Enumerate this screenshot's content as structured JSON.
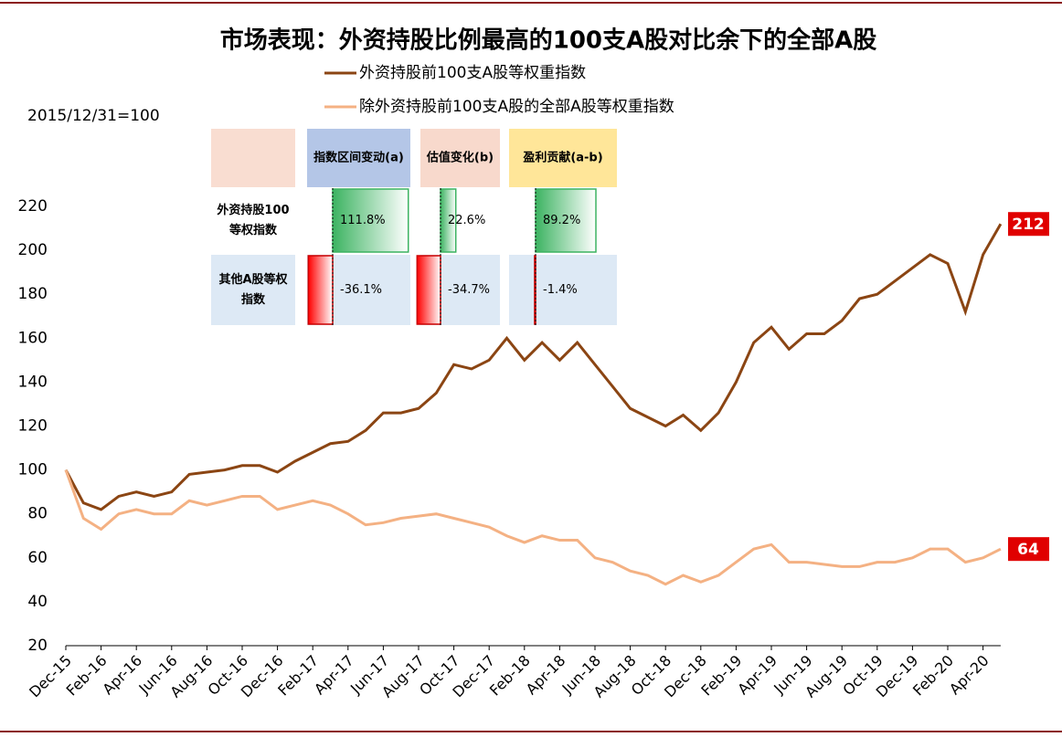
{
  "chart_data": {
    "type": "line",
    "title": "市场表现：外资持股比例最高的100支A股对比余下的全部A股",
    "subtitle": "2015/12/31=100",
    "categories": [
      "Dec-15",
      null,
      "Feb-16",
      null,
      "Apr-16",
      null,
      "Jun-16",
      null,
      "Aug-16",
      null,
      "Oct-16",
      null,
      "Dec-16",
      null,
      "Feb-17",
      null,
      "Apr-17",
      null,
      "Jun-17",
      null,
      "Aug-17",
      null,
      "Oct-17",
      null,
      "Dec-17",
      null,
      "Feb-18",
      null,
      "Apr-18",
      null,
      "Jun-18",
      null,
      "Aug-18",
      null,
      "Oct-18",
      null,
      "Dec-18",
      null,
      "Feb-19",
      null,
      "Apr-19",
      null,
      "Jun-19",
      null,
      "Aug-19",
      null,
      "Oct-19",
      null,
      "Dec-19",
      null,
      "Feb-20",
      null,
      "Apr-20",
      null
    ],
    "series": [
      {
        "name": "外资持股前100支A股等权重指数",
        "color": "#8b4513",
        "values": [
          100,
          85,
          82,
          88,
          90,
          88,
          90,
          98,
          99,
          100,
          102,
          102,
          99,
          104,
          108,
          112,
          113,
          118,
          126,
          126,
          128,
          135,
          148,
          146,
          150,
          160,
          150,
          158,
          150,
          158,
          148,
          138,
          128,
          124,
          120,
          125,
          118,
          126,
          140,
          158,
          165,
          155,
          162,
          162,
          168,
          178,
          180,
          186,
          192,
          198,
          194,
          172,
          198,
          212
        ]
      },
      {
        "name": "除外资持股前100支A股的全部A股等权重指数",
        "color": "#f4b183",
        "values": [
          100,
          78,
          73,
          80,
          82,
          80,
          80,
          86,
          84,
          86,
          88,
          88,
          82,
          84,
          86,
          84,
          80,
          75,
          76,
          78,
          79,
          80,
          78,
          76,
          74,
          70,
          67,
          70,
          68,
          68,
          60,
          58,
          54,
          52,
          48,
          52,
          49,
          52,
          58,
          64,
          66,
          58,
          58,
          57,
          56,
          56,
          58,
          58,
          60,
          64,
          64,
          58,
          60,
          64
        ]
      }
    ],
    "ylim": [
      20,
      220
    ],
    "yticks": [
      20,
      40,
      60,
      80,
      100,
      120,
      140,
      160,
      180,
      200,
      220
    ],
    "end_label_color": "#e00000"
  },
  "table": {
    "headers": [
      "指数区间变动(a)",
      "估值变化(b)",
      "盈利贡献(a-b)"
    ],
    "header_colors": [
      "#b4c6e7",
      "#f8d9cc",
      "#ffe699"
    ],
    "rows": [
      {
        "label": [
          "外资持股100",
          "等权指数"
        ],
        "values": [
          111.8,
          22.6,
          89.2
        ],
        "value_labels": [
          "111.8%",
          "22.6%",
          "89.2%"
        ]
      },
      {
        "label": [
          "其他A股等权",
          "指数"
        ],
        "values": [
          -36.1,
          -34.7,
          -1.4
        ],
        "value_labels": [
          "-36.1%",
          "-34.7%",
          "-1.4%"
        ]
      }
    ]
  }
}
